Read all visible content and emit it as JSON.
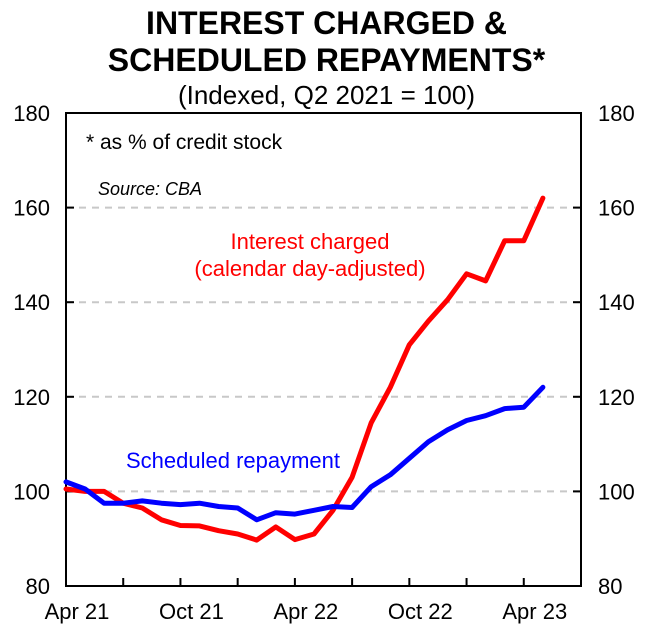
{
  "title_line1": "INTEREST CHARGED &",
  "title_line2": "SCHEDULED REPAYMENTS*",
  "subtitle": "(Indexed, Q2 2021 = 100)",
  "chart_data": {
    "type": "line",
    "title": "INTEREST CHARGED & SCHEDULED REPAYMENTS*",
    "subtitle": "(Indexed, Q2 2021 = 100)",
    "note": "*  as % of credit stock",
    "source": "Source: CBA",
    "ylim": [
      80,
      180
    ],
    "yticks": [
      80,
      100,
      120,
      140,
      160,
      180
    ],
    "ytick_labels": [
      "80",
      "100",
      "120",
      "140",
      "160",
      "180"
    ],
    "x_months_range": [
      0,
      27
    ],
    "xtick_labels": [
      {
        "label": "Apr 21",
        "m": 0
      },
      {
        "label": "Oct 21",
        "m": 6
      },
      {
        "label": "Apr 22",
        "m": 12
      },
      {
        "label": "Oct 22",
        "m": 18
      },
      {
        "label": "Apr 23",
        "m": 24
      }
    ],
    "grid": {
      "y": true,
      "style": "dashed",
      "values": [
        100,
        120,
        140,
        160
      ]
    },
    "series": [
      {
        "name": "Interest charged",
        "label_lines": [
          "Interest charged",
          "(calendar day-adjusted)"
        ],
        "color": "#ff0000",
        "x": [
          0,
          1,
          2,
          3,
          4,
          5,
          6,
          7,
          8,
          9,
          10,
          11,
          12,
          13,
          14,
          15,
          16,
          17,
          18,
          19,
          20,
          21,
          22,
          23,
          24,
          25
        ],
        "values": [
          100.5,
          100,
          100,
          97.5,
          96.5,
          94,
          92.8,
          92.7,
          91.7,
          91,
          89.7,
          92.5,
          89.8,
          91,
          96,
          103,
          114.5,
          122,
          131,
          136,
          140.5,
          146,
          144.5,
          153,
          153,
          162
        ]
      },
      {
        "name": "Scheduled repayment",
        "label_lines": [
          "Scheduled repayment"
        ],
        "color": "#0000ff",
        "x": [
          0,
          1,
          2,
          3,
          4,
          5,
          6,
          7,
          8,
          9,
          10,
          11,
          12,
          13,
          14,
          15,
          16,
          17,
          18,
          19,
          20,
          21,
          22,
          23,
          24,
          25
        ],
        "values": [
          102,
          100.5,
          97.5,
          97.5,
          98,
          97.5,
          97.2,
          97.5,
          96.8,
          96.5,
          94,
          95.5,
          95.2,
          96,
          96.8,
          96.6,
          101,
          103.5,
          107,
          110.5,
          113,
          115,
          116,
          117.5,
          117.8,
          122
        ]
      }
    ]
  }
}
